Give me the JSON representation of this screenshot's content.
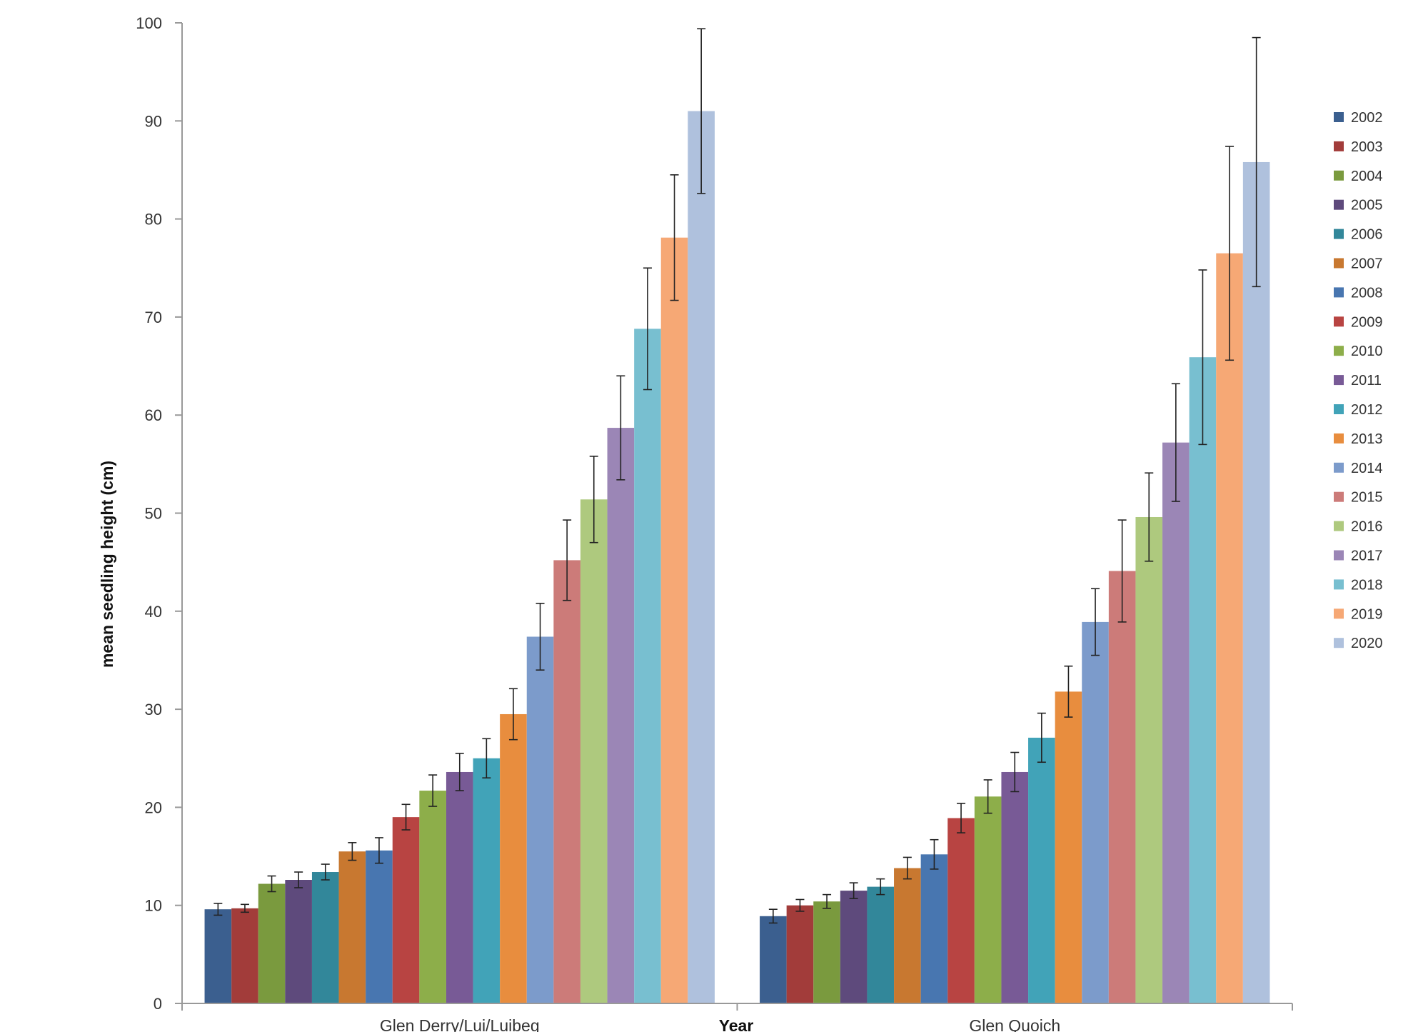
{
  "chart_data": {
    "type": "bar",
    "title": "",
    "xlabel": "Year",
    "ylabel": "mean seedling height (cm)",
    "ylim": [
      0,
      100
    ],
    "yticks": [
      0,
      10,
      20,
      30,
      40,
      50,
      60,
      70,
      80,
      90,
      100
    ],
    "grid": false,
    "legend_position": "right",
    "error_bars": true,
    "categories": [
      "Glen Derry/Lui/Luibeg",
      "Glen Quoich"
    ],
    "series": [
      {
        "name": "2002",
        "color": "#3B5F8F",
        "values": [
          9.6,
          8.9
        ],
        "errors": [
          0.6,
          0.7
        ]
      },
      {
        "name": "2003",
        "color": "#A23C3A",
        "values": [
          9.7,
          10.0
        ],
        "errors": [
          0.4,
          0.6
        ]
      },
      {
        "name": "2004",
        "color": "#7A9A3E",
        "values": [
          12.2,
          10.4
        ],
        "errors": [
          0.8,
          0.7
        ]
      },
      {
        "name": "2005",
        "color": "#5E4A7C",
        "values": [
          12.6,
          11.5
        ],
        "errors": [
          0.8,
          0.8
        ]
      },
      {
        "name": "2006",
        "color": "#32879A",
        "values": [
          13.4,
          11.9
        ],
        "errors": [
          0.8,
          0.8
        ]
      },
      {
        "name": "2007",
        "color": "#C87830",
        "values": [
          15.5,
          13.8
        ],
        "errors": [
          0.9,
          1.1
        ]
      },
      {
        "name": "2008",
        "color": "#4876B0",
        "values": [
          15.6,
          15.2
        ],
        "errors": [
          1.3,
          1.5
        ]
      },
      {
        "name": "2009",
        "color": "#B84442",
        "values": [
          19.0,
          18.9
        ],
        "errors": [
          1.3,
          1.5
        ]
      },
      {
        "name": "2010",
        "color": "#8DAE4A",
        "values": [
          21.7,
          21.1
        ],
        "errors": [
          1.6,
          1.7
        ]
      },
      {
        "name": "2011",
        "color": "#785A96",
        "values": [
          23.6,
          23.6
        ],
        "errors": [
          1.9,
          2.0
        ]
      },
      {
        "name": "2012",
        "color": "#41A3B8",
        "values": [
          25.0,
          27.1
        ],
        "errors": [
          2.0,
          2.5
        ]
      },
      {
        "name": "2013",
        "color": "#E88D3E",
        "values": [
          29.5,
          31.8
        ],
        "errors": [
          2.6,
          2.6
        ]
      },
      {
        "name": "2014",
        "color": "#7C9BCB",
        "values": [
          37.4,
          38.9
        ],
        "errors": [
          3.4,
          3.4
        ]
      },
      {
        "name": "2015",
        "color": "#CC7B79",
        "values": [
          45.2,
          44.1
        ],
        "errors": [
          4.1,
          5.2
        ]
      },
      {
        "name": "2016",
        "color": "#AEC97E",
        "values": [
          51.4,
          49.6
        ],
        "errors": [
          4.4,
          4.5
        ]
      },
      {
        "name": "2017",
        "color": "#9B86B6",
        "values": [
          58.7,
          57.2
        ],
        "errors": [
          5.3,
          6.0
        ]
      },
      {
        "name": "2018",
        "color": "#78BFD0",
        "values": [
          68.8,
          65.9
        ],
        "errors": [
          6.2,
          8.9
        ]
      },
      {
        "name": "2019",
        "color": "#F6A875",
        "values": [
          78.1,
          76.5
        ],
        "errors": [
          6.4,
          10.9
        ]
      },
      {
        "name": "2020",
        "color": "#AFC1DD",
        "values": [
          91.0,
          85.8
        ],
        "errors": [
          8.4,
          12.7
        ]
      }
    ]
  }
}
